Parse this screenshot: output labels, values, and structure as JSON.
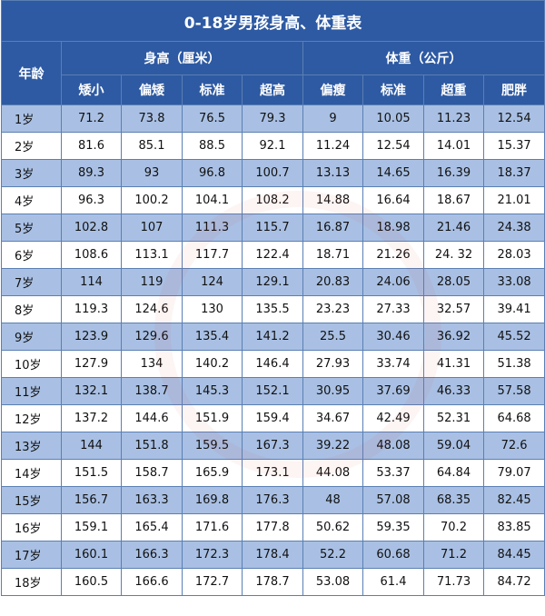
{
  "title": "0-18岁男孩身高、体重表",
  "headers": {
    "age": "年龄",
    "height_group": "身高（厘米）",
    "weight_group": "体重（公斤）",
    "height_cols": [
      "矮小",
      "偏矮",
      "标准",
      "超高"
    ],
    "weight_cols": [
      "偏瘦",
      "标准",
      "超重",
      "肥胖"
    ]
  },
  "rows": [
    {
      "age": "1岁",
      "h": [
        "71.2",
        "73.8",
        "76.5",
        "79.3"
      ],
      "w": [
        "9",
        "10.05",
        "11.23",
        "12.54"
      ]
    },
    {
      "age": "2岁",
      "h": [
        "81.6",
        "85.1",
        "88.5",
        "92.1"
      ],
      "w": [
        "11.24",
        "12.54",
        "14.01",
        "15.37"
      ]
    },
    {
      "age": "3岁",
      "h": [
        "89.3",
        "93",
        "96.8",
        "100.7"
      ],
      "w": [
        "13.13",
        "14.65",
        "16.39",
        "18.37"
      ]
    },
    {
      "age": "4岁",
      "h": [
        "96.3",
        "100.2",
        "104.1",
        "108.2"
      ],
      "w": [
        "14.88",
        "16.64",
        "18.67",
        "21.01"
      ]
    },
    {
      "age": "5岁",
      "h": [
        "102.8",
        "107",
        "111.3",
        "115.7"
      ],
      "w": [
        "16.87",
        "18.98",
        "21.46",
        "24.38"
      ]
    },
    {
      "age": "6岁",
      "h": [
        "108.6",
        "113.1",
        "117.7",
        "122.4"
      ],
      "w": [
        "18.71",
        "21.26",
        "24. 32",
        "28.03"
      ]
    },
    {
      "age": "7岁",
      "h": [
        "114",
        "119",
        "124",
        "129.1"
      ],
      "w": [
        "20.83",
        "24.06",
        "28.05",
        "33.08"
      ]
    },
    {
      "age": "8岁",
      "h": [
        "119.3",
        "124.6",
        "130",
        "135.5"
      ],
      "w": [
        "23.23",
        "27.33",
        "32.57",
        "39.41"
      ]
    },
    {
      "age": "9岁",
      "h": [
        "123.9",
        "129.6",
        "135.4",
        "141.2"
      ],
      "w": [
        "25.5",
        "30.46",
        "36.92",
        "45.52"
      ]
    },
    {
      "age": "10岁",
      "h": [
        "127.9",
        "134",
        "140.2",
        "146.4"
      ],
      "w": [
        "27.93",
        "33.74",
        "41.31",
        "51.38"
      ]
    },
    {
      "age": "11岁",
      "h": [
        "132.1",
        "138.7",
        "145.3",
        "152.1"
      ],
      "w": [
        "30.95",
        "37.69",
        "46.33",
        "57.58"
      ]
    },
    {
      "age": "12岁",
      "h": [
        "137.2",
        "144.6",
        "151.9",
        "159.4"
      ],
      "w": [
        "34.67",
        "42.49",
        "52.31",
        "64.68"
      ]
    },
    {
      "age": "13岁",
      "h": [
        "144",
        "151.8",
        "159.5",
        "167.3"
      ],
      "w": [
        "39.22",
        "48.08",
        "59.04",
        "72.6"
      ]
    },
    {
      "age": "14岁",
      "h": [
        "151.5",
        "158.7",
        "165.9",
        "173.1"
      ],
      "w": [
        "44.08",
        "53.37",
        "64.84",
        "79.07"
      ]
    },
    {
      "age": "15岁",
      "h": [
        "156.7",
        "163.3",
        "169.8",
        "176.3"
      ],
      "w": [
        "48",
        "57.08",
        "68.35",
        "82.45"
      ]
    },
    {
      "age": "16岁",
      "h": [
        "159.1",
        "165.4",
        "171.6",
        "177.8"
      ],
      "w": [
        "50.62",
        "59.35",
        "70.2",
        "83.85"
      ]
    },
    {
      "age": "17岁",
      "h": [
        "160.1",
        "166.3",
        "172.3",
        "178.4"
      ],
      "w": [
        "52.2",
        "60.68",
        "71.2",
        "84.45"
      ]
    },
    {
      "age": "18岁",
      "h": [
        "160.5",
        "166.6",
        "172.7",
        "178.7"
      ],
      "w": [
        "53.08",
        "61.4",
        "71.73",
        "84.72"
      ]
    }
  ]
}
